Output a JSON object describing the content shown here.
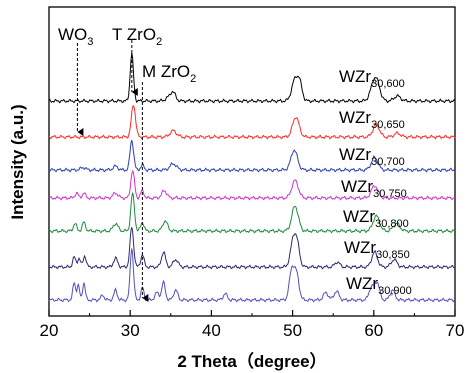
{
  "chart_data": {
    "type": "line",
    "xlabel": "2 Theta（degree）",
    "ylabel": "Intensity (a.u.)",
    "xlim": [
      20,
      70
    ],
    "xticks": [
      20,
      30,
      40,
      50,
      60,
      70
    ],
    "grid": false,
    "annotations": [
      {
        "base": "WO",
        "sub": "3",
        "x": 23.5
      },
      {
        "base": "T ZrO",
        "sub": "2",
        "x": 30.2
      },
      {
        "base": "M ZrO",
        "sub": "2",
        "x": 31.5
      }
    ],
    "series": [
      {
        "name": "WZr",
        "sub": "30,600",
        "color": "#000000",
        "baseline": 0.0,
        "peaks": [
          [
            30.2,
            1.9,
            0.2
          ],
          [
            34.8,
            0.15,
            0.4
          ],
          [
            35.3,
            0.3,
            0.3
          ],
          [
            50.3,
            0.85,
            0.4
          ],
          [
            50.9,
            0.6,
            0.3
          ],
          [
            59.9,
            0.5,
            0.4
          ],
          [
            60.4,
            0.65,
            0.4
          ],
          [
            62.9,
            0.2,
            0.4
          ]
        ]
      },
      {
        "name": "WZr",
        "sub": "30,650",
        "color": "#ff2b2b",
        "baseline": 0.0,
        "peaks": [
          [
            30.4,
            1.3,
            0.25
          ],
          [
            35.3,
            0.25,
            0.4
          ],
          [
            50.4,
            0.8,
            0.4
          ],
          [
            60.3,
            0.5,
            0.4
          ],
          [
            62.9,
            0.15,
            0.4
          ]
        ]
      },
      {
        "name": "WZr",
        "sub": "30,700",
        "color": "#2b3fb5",
        "baseline": 0.0,
        "peaks": [
          [
            24.2,
            0.1,
            0.3
          ],
          [
            28.2,
            0.15,
            0.3
          ],
          [
            30.2,
            1.2,
            0.22
          ],
          [
            31.5,
            0.2,
            0.2
          ],
          [
            35.3,
            0.25,
            0.4
          ],
          [
            50.2,
            0.8,
            0.4
          ],
          [
            60.1,
            0.5,
            0.4
          ]
        ]
      },
      {
        "name": "WZr",
        "sub": "30,750",
        "color": "#cc33cc",
        "baseline": 0.0,
        "peaks": [
          [
            23.4,
            0.2,
            0.2
          ],
          [
            24.3,
            0.2,
            0.2
          ],
          [
            28.2,
            0.2,
            0.3
          ],
          [
            30.3,
            1.1,
            0.22
          ],
          [
            31.5,
            0.3,
            0.2
          ],
          [
            34.2,
            0.3,
            0.3
          ],
          [
            50.3,
            0.7,
            0.4
          ],
          [
            60.1,
            0.5,
            0.4
          ]
        ]
      },
      {
        "name": "WZr",
        "sub": "30,800",
        "color": "#1c8a3c",
        "baseline": 0.0,
        "peaks": [
          [
            23.2,
            0.3,
            0.2
          ],
          [
            24.3,
            0.35,
            0.2
          ],
          [
            28.2,
            0.3,
            0.3
          ],
          [
            30.3,
            1.5,
            0.22
          ],
          [
            31.5,
            0.35,
            0.2
          ],
          [
            34.3,
            0.4,
            0.3
          ],
          [
            50.3,
            1.0,
            0.4
          ],
          [
            60.3,
            0.6,
            0.4
          ],
          [
            62.8,
            0.3,
            0.4
          ]
        ]
      },
      {
        "name": "WZr",
        "sub": "30,850",
        "color": "#2a2a6e",
        "baseline": 0.0,
        "peaks": [
          [
            23.1,
            0.4,
            0.18
          ],
          [
            23.7,
            0.35,
            0.18
          ],
          [
            24.4,
            0.45,
            0.18
          ],
          [
            28.2,
            0.35,
            0.25
          ],
          [
            30.2,
            1.6,
            0.22
          ],
          [
            31.5,
            0.5,
            0.2
          ],
          [
            34.1,
            0.6,
            0.25
          ],
          [
            35.6,
            0.3,
            0.3
          ],
          [
            50.1,
            1.1,
            0.35
          ],
          [
            50.6,
            0.7,
            0.3
          ],
          [
            55.5,
            0.2,
            0.3
          ],
          [
            60.1,
            0.6,
            0.35
          ],
          [
            62.5,
            0.3,
            0.35
          ]
        ]
      },
      {
        "name": "WZr",
        "sub": "30,900",
        "color": "#5050c0",
        "baseline": 0.0,
        "peaks": [
          [
            23.1,
            0.7,
            0.16
          ],
          [
            23.6,
            0.6,
            0.16
          ],
          [
            24.3,
            0.7,
            0.16
          ],
          [
            26.6,
            0.2,
            0.2
          ],
          [
            28.2,
            0.4,
            0.2
          ],
          [
            30.2,
            2.1,
            0.2
          ],
          [
            31.5,
            0.5,
            0.18
          ],
          [
            33.3,
            0.3,
            0.25
          ],
          [
            34.1,
            0.7,
            0.22
          ],
          [
            35.6,
            0.4,
            0.25
          ],
          [
            41.7,
            0.25,
            0.25
          ],
          [
            49.9,
            1.2,
            0.3
          ],
          [
            50.5,
            1.0,
            0.3
          ],
          [
            54.1,
            0.3,
            0.3
          ],
          [
            55.4,
            0.35,
            0.3
          ],
          [
            59.7,
            0.5,
            0.3
          ],
          [
            60.4,
            0.7,
            0.3
          ],
          [
            62.3,
            0.4,
            0.3
          ]
        ]
      }
    ]
  }
}
